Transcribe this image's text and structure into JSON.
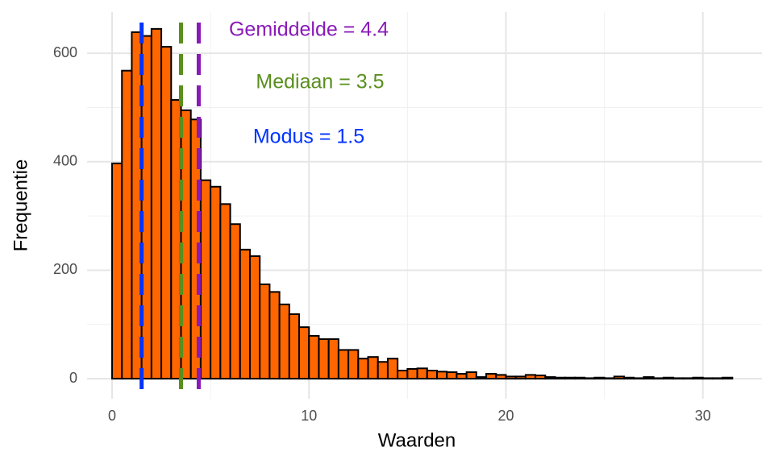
{
  "chart_data": {
    "type": "histogram",
    "xlabel": "Waarden",
    "ylabel": "Frequentie",
    "bins": [
      0,
      0.5,
      1,
      1.5,
      2,
      2.5,
      3,
      3.5,
      4,
      4.5,
      5,
      5.5,
      6,
      6.5,
      7,
      7.5,
      8,
      8.5,
      9,
      9.5,
      10,
      10.5,
      11,
      11.5,
      12,
      12.5,
      13,
      13.5,
      14,
      14.5,
      15,
      15.5,
      16,
      16.5,
      17,
      17.5,
      18,
      18.5,
      19,
      19.5,
      20,
      20.5,
      21,
      21.5,
      22,
      22.5,
      23,
      23.5,
      24,
      24.5,
      25,
      25.5,
      26,
      26.5,
      27,
      27.5,
      28,
      28.5,
      29,
      29.5,
      30,
      30.5,
      31,
      31.5
    ],
    "values": [
      397,
      568,
      639,
      632,
      645,
      612,
      514,
      495,
      478,
      366,
      354,
      322,
      285,
      238,
      226,
      174,
      160,
      137,
      119,
      95,
      79,
      73,
      73,
      53,
      53,
      37,
      40,
      31,
      37,
      15,
      18,
      19,
      15,
      13,
      12,
      9,
      12,
      3,
      9,
      7,
      4,
      4,
      7,
      6,
      3,
      2,
      2,
      2,
      1,
      2,
      1,
      4,
      2,
      1,
      3,
      1,
      2,
      1,
      1,
      2,
      1,
      1,
      2
    ],
    "color": "#ff6600",
    "edgecolor": "#000000",
    "vlines": [
      {
        "label": "Gemiddelde = 4.4",
        "value": 4.4,
        "color": "#8a1ab8"
      },
      {
        "label": "Mediaan = 3.5",
        "value": 3.5,
        "color": "#5a8f1e"
      },
      {
        "label": "Modus = 1.5",
        "value": 1.5,
        "color": "#0033ff"
      }
    ],
    "xlim": [
      -1.27,
      33
    ],
    "ylim": [
      -37,
      676
    ],
    "xticks": [
      0,
      10,
      20,
      30
    ],
    "yticks": [
      0,
      200,
      400,
      600
    ],
    "minor_xticks": [
      5,
      15,
      25
    ],
    "minor_yticks": [
      100,
      300,
      500
    ],
    "grid": true
  }
}
